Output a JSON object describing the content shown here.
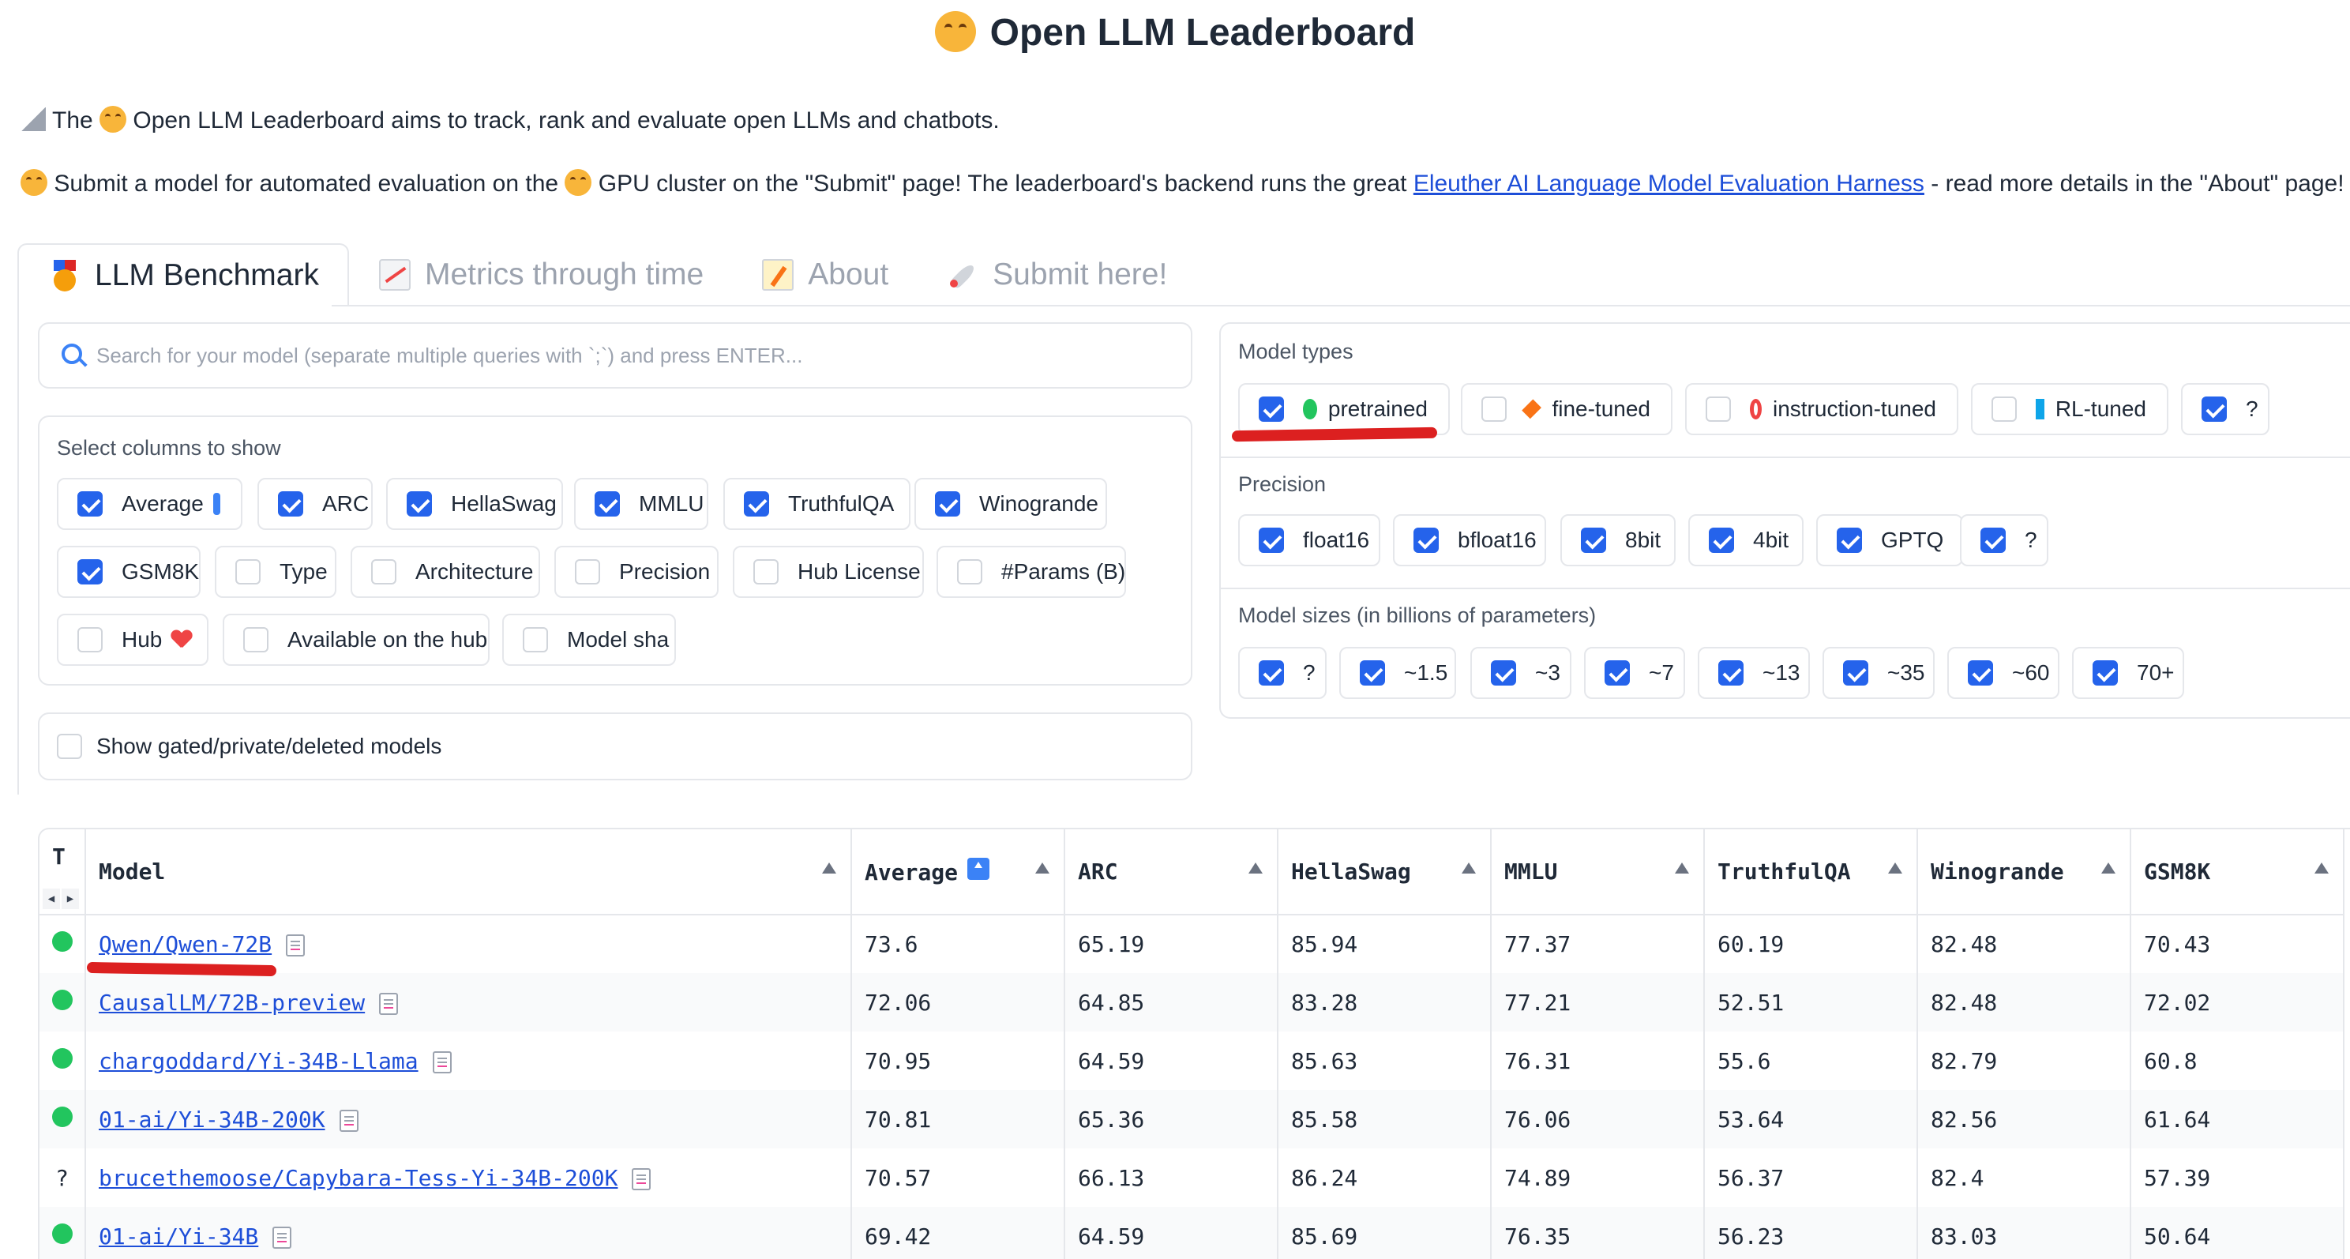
{
  "title": "Open LLM Leaderboard",
  "intro": {
    "line1": "The  Open LLM Leaderboard aims to track, rank and evaluate open LLMs and chatbots.",
    "line1_a": "The ",
    "line1_b": " Open LLM Leaderboard aims to track, rank and evaluate open LLMs and chatbots.",
    "line2_a": " Submit a model for automated evaluation on the ",
    "line2_b": " GPU cluster on the \"Submit\" page! The leaderboard's backend runs the great ",
    "line2_link": "Eleuther AI Language Model Evaluation Harness",
    "line2_c": " - read more details in the \"About\" page!"
  },
  "tabs": [
    {
      "label": "LLM Benchmark",
      "icon": "medal-icon"
    },
    {
      "label": "Metrics through time",
      "icon": "chart-increasing-icon"
    },
    {
      "label": "About",
      "icon": "memo-icon"
    },
    {
      "label": "Submit here!",
      "icon": "rocket-icon"
    }
  ],
  "search": {
    "placeholder": "Search for your model (separate multiple queries with `;`) and press ENTER..."
  },
  "columns": {
    "label": "Select columns to show",
    "items": [
      {
        "label": "Average",
        "checked": true
      },
      {
        "label": "ARC",
        "checked": true
      },
      {
        "label": "HellaSwag",
        "checked": true
      },
      {
        "label": "MMLU",
        "checked": true
      },
      {
        "label": "TruthfulQA",
        "checked": true
      },
      {
        "label": "Winogrande",
        "checked": true
      },
      {
        "label": "GSM8K",
        "checked": true
      },
      {
        "label": "Type",
        "checked": false
      },
      {
        "label": "Architecture",
        "checked": false
      },
      {
        "label": "Precision",
        "checked": false
      },
      {
        "label": "Hub License",
        "checked": false
      },
      {
        "label": "#Params (B)",
        "checked": false
      },
      {
        "label": "Hub",
        "checked": false
      },
      {
        "label": "Available on the hub",
        "checked": false
      },
      {
        "label": "Model sha",
        "checked": false
      }
    ]
  },
  "gated": {
    "label": "Show gated/private/deleted models",
    "checked": false
  },
  "model_types": {
    "label": "Model types",
    "items": [
      {
        "label": "pretrained",
        "checked": true,
        "icon": "green-circle-icon"
      },
      {
        "label": "fine-tuned",
        "checked": false,
        "icon": "orange-diamond-icon"
      },
      {
        "label": "instruction-tuned",
        "checked": false,
        "icon": "red-ring-icon"
      },
      {
        "label": "RL-tuned",
        "checked": false,
        "icon": "blue-square-icon"
      },
      {
        "label": "?",
        "checked": true
      }
    ]
  },
  "precision": {
    "label": "Precision",
    "items": [
      {
        "label": "float16",
        "checked": true
      },
      {
        "label": "bfloat16",
        "checked": true
      },
      {
        "label": "8bit",
        "checked": true
      },
      {
        "label": "4bit",
        "checked": true
      },
      {
        "label": "GPTQ",
        "checked": true
      },
      {
        "label": "?",
        "checked": true
      }
    ]
  },
  "sizes": {
    "label": "Model sizes (in billions of parameters)",
    "items": [
      {
        "label": "?",
        "checked": true
      },
      {
        "label": "~1.5",
        "checked": true
      },
      {
        "label": "~3",
        "checked": true
      },
      {
        "label": "~7",
        "checked": true
      },
      {
        "label": "~13",
        "checked": true
      },
      {
        "label": "~35",
        "checked": true
      },
      {
        "label": "~60",
        "checked": true
      },
      {
        "label": "70+",
        "checked": true
      }
    ]
  },
  "table": {
    "headers": [
      "T",
      "Model",
      "Average",
      "ARC",
      "HellaSwag",
      "MMLU",
      "TruthfulQA",
      "Winogrande",
      "GSM8K"
    ],
    "rows": [
      {
        "type": "pretrained",
        "model": "Qwen/Qwen-72B",
        "values": [
          "73.6",
          "65.19",
          "85.94",
          "77.37",
          "60.19",
          "82.48",
          "70.43"
        ]
      },
      {
        "type": "pretrained",
        "model": "CausalLM/72B-preview",
        "values": [
          "72.06",
          "64.85",
          "83.28",
          "77.21",
          "52.51",
          "82.48",
          "72.02"
        ]
      },
      {
        "type": "pretrained",
        "model": "chargoddard/Yi-34B-Llama",
        "values": [
          "70.95",
          "64.59",
          "85.63",
          "76.31",
          "55.6",
          "82.79",
          "60.8"
        ]
      },
      {
        "type": "pretrained",
        "model": "01-ai/Yi-34B-200K",
        "values": [
          "70.81",
          "65.36",
          "85.58",
          "76.06",
          "53.64",
          "82.56",
          "61.64"
        ]
      },
      {
        "type": "?",
        "model": "brucethemoose/Capybara-Tess-Yi-34B-200K",
        "values": [
          "70.57",
          "66.13",
          "86.24",
          "74.89",
          "56.37",
          "82.4",
          "57.39"
        ]
      },
      {
        "type": "pretrained",
        "model": "01-ai/Yi-34B",
        "values": [
          "69.42",
          "64.59",
          "85.69",
          "76.35",
          "56.23",
          "83.03",
          "50.64"
        ]
      }
    ]
  },
  "colors": {
    "accent": "#2563eb",
    "link": "#1d4ed8",
    "annotation": "#dc2020",
    "pretrained": "#22c55e"
  }
}
